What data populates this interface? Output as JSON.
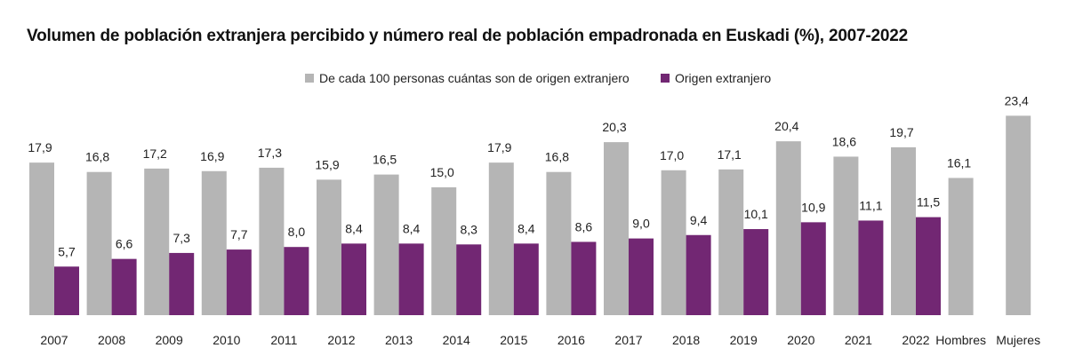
{
  "chart_data": {
    "type": "bar",
    "title": "Volumen de población extranjera percibido y número real de población empadronada en Euskadi (%), 2007-2022",
    "xlabel": "",
    "ylabel": "",
    "ylim": [
      0,
      25
    ],
    "grid": false,
    "legend_position": "top-center",
    "categories": [
      "2007",
      "2008",
      "2009",
      "2010",
      "2011",
      "2012",
      "2013",
      "2014",
      "2015",
      "2016",
      "2017",
      "2018",
      "2019",
      "2020",
      "2021",
      "2022",
      "Hombres",
      "Mujeres"
    ],
    "series": [
      {
        "name": "De cada 100 personas cuántas son de origen extranjero",
        "color": "#b5b5b5",
        "values": [
          17.9,
          16.8,
          17.2,
          16.9,
          17.3,
          15.9,
          16.5,
          15.0,
          17.9,
          16.8,
          20.3,
          17.0,
          17.1,
          20.4,
          18.6,
          19.7,
          16.1,
          23.4
        ],
        "labels": [
          "17,9",
          "16,8",
          "17,2",
          "16,9",
          "17,3",
          "15,9",
          "16,5",
          "15,0",
          "17,9",
          "16,8",
          "20,3",
          "17,0",
          "17,1",
          "20,4",
          "18,6",
          "19,7",
          "16,1",
          "23,4"
        ]
      },
      {
        "name": "Origen extranjero",
        "color": "#722773",
        "values": [
          5.7,
          6.6,
          7.3,
          7.7,
          8.0,
          8.4,
          8.4,
          8.3,
          8.4,
          8.6,
          9.0,
          9.4,
          10.1,
          10.9,
          11.1,
          11.5,
          null,
          null
        ],
        "labels": [
          "5,7",
          "6,6",
          "7,3",
          "7,7",
          "8,0",
          "8,4",
          "8,4",
          "8,3",
          "8,4",
          "8,6",
          "9,0",
          "9,4",
          "10,1",
          "10,9",
          "11,1",
          "11,5",
          null,
          null
        ]
      }
    ]
  }
}
